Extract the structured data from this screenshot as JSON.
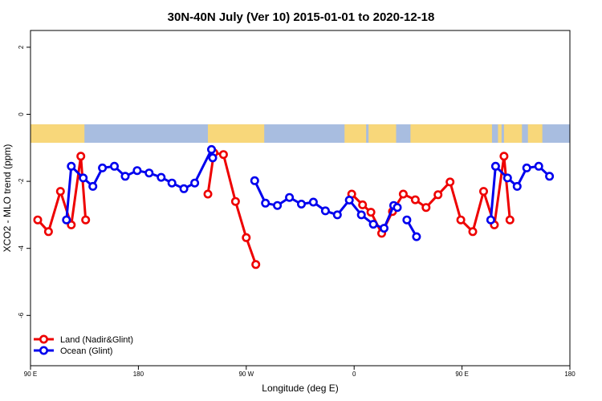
{
  "chart_data": {
    "type": "line",
    "title": "30N-40N July (Ver 10)   2015-01-01 to 2020-12-18",
    "xlabel": "Longitude (deg E)",
    "ylabel": "XCO2 - MLO trend (ppm)",
    "xlim": [
      90,
      540
    ],
    "ylim": [
      -7.5,
      2.5
    ],
    "x_ticks": [
      {
        "value": 90,
        "label": "90 E"
      },
      {
        "value": 180,
        "label": "180"
      },
      {
        "value": 270,
        "label": "90 W"
      },
      {
        "value": 360,
        "label": "0"
      },
      {
        "value": 450,
        "label": "90 E"
      },
      {
        "value": 540,
        "label": "180"
      }
    ],
    "y_ticks": [
      {
        "value": 2,
        "label": "2"
      },
      {
        "value": 0,
        "label": "0"
      },
      {
        "value": -2,
        "label": "-2"
      },
      {
        "value": -4,
        "label": "-4"
      },
      {
        "value": -6,
        "label": "-6"
      }
    ],
    "land_band": {
      "y_range": [
        -0.85,
        -0.3
      ],
      "ocean_color": "#a8bde0",
      "land_color": "#f8d77a",
      "land_segments": [
        [
          90,
          135
        ],
        [
          238,
          285
        ],
        [
          352,
          370
        ],
        [
          372,
          395
        ],
        [
          407,
          475
        ],
        [
          480,
          483
        ],
        [
          485,
          500
        ],
        [
          505,
          517
        ]
      ]
    },
    "series": [
      {
        "name": "Land (Nadir&Glint)",
        "color": "#ee0000",
        "segments": [
          [
            [
              96,
              -3.15
            ],
            [
              105,
              -3.5
            ],
            [
              115,
              -2.3
            ],
            [
              124,
              -3.3
            ],
            [
              132,
              -1.25
            ],
            [
              136,
              -3.15
            ]
          ],
          [
            [
              238,
              -2.38
            ],
            [
              243,
              -1.15
            ],
            [
              251,
              -1.2
            ],
            [
              261,
              -2.6
            ],
            [
              270,
              -3.68
            ],
            [
              278,
              -4.48
            ]
          ],
          [
            [
              358,
              -2.38
            ],
            [
              367,
              -2.7
            ],
            [
              374,
              -2.92
            ],
            [
              383,
              -3.55
            ],
            [
              392,
              -2.9
            ],
            [
              401,
              -2.38
            ],
            [
              411,
              -2.55
            ],
            [
              420,
              -2.78
            ],
            [
              430,
              -2.4
            ],
            [
              440,
              -2.02
            ],
            [
              449,
              -3.15
            ],
            [
              459,
              -3.5
            ],
            [
              468,
              -2.3
            ],
            [
              477,
              -3.3
            ],
            [
              485,
              -1.25
            ],
            [
              490,
              -3.15
            ]
          ]
        ]
      },
      {
        "name": "Ocean (Glint)",
        "color": "#0000ee",
        "segments": [
          [
            [
              120,
              -3.15
            ],
            [
              124,
              -1.55
            ],
            [
              134,
              -1.9
            ],
            [
              142,
              -2.15
            ],
            [
              150,
              -1.6
            ],
            [
              160,
              -1.55
            ],
            [
              169,
              -1.85
            ],
            [
              179,
              -1.68
            ],
            [
              189,
              -1.75
            ],
            [
              199,
              -1.88
            ],
            [
              208,
              -2.05
            ],
            [
              218,
              -2.22
            ],
            [
              227,
              -2.05
            ],
            [
              241,
              -1.05
            ],
            [
              242,
              -1.3
            ]
          ],
          [
            [
              277,
              -1.98
            ],
            [
              286,
              -2.65
            ],
            [
              296,
              -2.72
            ],
            [
              306,
              -2.48
            ],
            [
              316,
              -2.68
            ],
            [
              326,
              -2.62
            ],
            [
              336,
              -2.88
            ],
            [
              346,
              -3.0
            ],
            [
              356,
              -2.56
            ],
            [
              366,
              -3.0
            ],
            [
              376,
              -3.28
            ],
            [
              385,
              -3.4
            ],
            [
              393,
              -2.72
            ],
            [
              396,
              -2.78
            ]
          ],
          [
            [
              404,
              -3.15
            ],
            [
              412,
              -3.65
            ]
          ],
          [
            [
              474,
              -3.15
            ],
            [
              478,
              -1.55
            ],
            [
              488,
              -1.9
            ],
            [
              496,
              -2.15
            ],
            [
              504,
              -1.6
            ],
            [
              514,
              -1.55
            ],
            [
              523,
              -1.85
            ]
          ]
        ]
      }
    ],
    "legend_position": "bottom-left"
  }
}
